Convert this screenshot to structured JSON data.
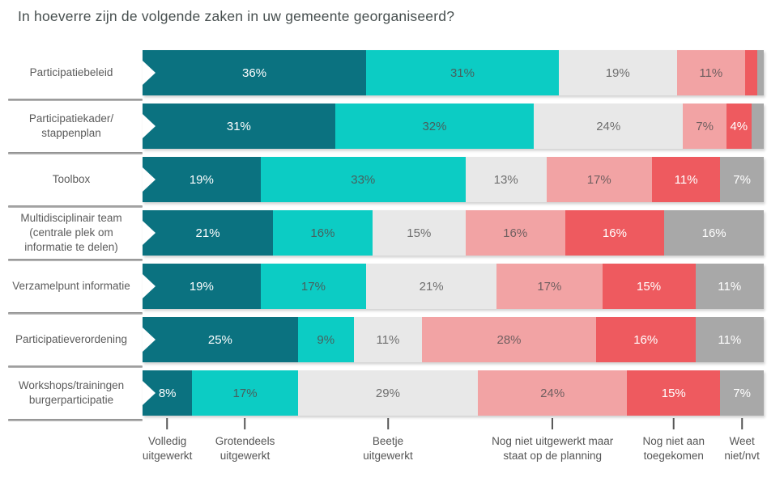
{
  "title": "In hoeverre zijn de volgende zaken in uw gemeente georganiseerd?",
  "chart_data": {
    "type": "bar",
    "orientation": "horizontal",
    "stacked": true,
    "unit": "%",
    "label_min_pct": 4,
    "categories": [
      "Participatiebeleid",
      "Participatiekader/\nstappenplan",
      "Toolbox",
      "Multidisciplinair team\n(centrale plek om\ninformatie te delen)",
      "Verzamelpunt informatie",
      "Participatieverordening",
      "Workshops/trainingen\nburgerparticipatie"
    ],
    "series": [
      {
        "name": "Volledig uitgewerkt",
        "color": "#0b7280",
        "label_color": "#ffffff",
        "values": [
          36,
          31,
          19,
          21,
          19,
          25,
          8
        ]
      },
      {
        "name": "Grotendeels uitgewerkt",
        "color": "#0cccc4",
        "label_color": "#47605e",
        "values": [
          31,
          32,
          33,
          16,
          17,
          9,
          17
        ]
      },
      {
        "name": "Beetje uitgewerkt",
        "color": "#e8e8e8",
        "label_color": "#6f6f6f",
        "values": [
          19,
          24,
          13,
          15,
          21,
          11,
          29
        ]
      },
      {
        "name": "Nog niet uitgewerkt maar staat op de planning",
        "color": "#f2a3a4",
        "label_color": "#705f60",
        "values": [
          11,
          7,
          17,
          16,
          17,
          28,
          24
        ]
      },
      {
        "name": "Nog niet aan toegekomen",
        "color": "#ee5a5f",
        "label_color": "#ffffff",
        "values": [
          2,
          4,
          11,
          16,
          15,
          16,
          15
        ]
      },
      {
        "name": "Weet niet/nvt",
        "color": "#a8a8a8",
        "label_color": "#ffffff",
        "values": [
          1,
          2,
          7,
          16,
          11,
          11,
          7
        ]
      }
    ],
    "legend": {
      "position": "bottom",
      "items": [
        {
          "lines": [
            "Volledig",
            "uitgewerkt"
          ],
          "x_pct": 4
        },
        {
          "lines": [
            "Grotendeels",
            "uitgewerkt"
          ],
          "x_pct": 16.5
        },
        {
          "lines": [
            "Beetje",
            "uitgewerkt"
          ],
          "x_pct": 39.5
        },
        {
          "lines": [
            "Nog niet uitgewerkt maar",
            "staat op de planning"
          ],
          "x_pct": 66
        },
        {
          "lines": [
            "Nog niet aan",
            "toegekomen"
          ],
          "x_pct": 85.5
        },
        {
          "lines": [
            "Weet",
            "niet/nvt"
          ],
          "x_pct": 96.5
        }
      ]
    }
  }
}
